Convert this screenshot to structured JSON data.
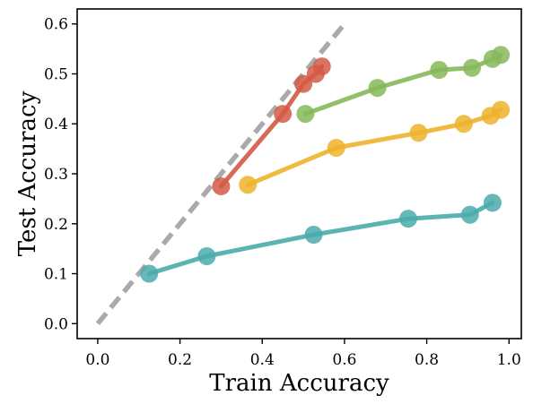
{
  "chart_data": {
    "type": "line",
    "xlabel": "Train Accuracy",
    "ylabel": "Test Accuracy",
    "xlim": [
      -0.05,
      1.03
    ],
    "ylim": [
      -0.03,
      0.63
    ],
    "xticks": [
      "0.0",
      "0.2",
      "0.4",
      "0.6",
      "0.8",
      "1.0"
    ],
    "xtick_values": [
      0.0,
      0.2,
      0.4,
      0.6,
      0.8,
      1.0
    ],
    "yticks": [
      "0.0",
      "0.1",
      "0.2",
      "0.3",
      "0.4",
      "0.5",
      "0.6"
    ],
    "ytick_values": [
      0.0,
      0.1,
      0.2,
      0.3,
      0.4,
      0.5,
      0.6
    ],
    "grid": false,
    "reference_line": {
      "x": [
        0.0,
        0.6
      ],
      "y": [
        0.0,
        0.6
      ],
      "color": "#aaaaaa",
      "style": "dashed"
    },
    "series": [
      {
        "color": "#d35a45",
        "x": [
          0.3,
          0.45,
          0.5,
          0.53,
          0.545
        ],
        "y": [
          0.275,
          0.42,
          0.48,
          0.5,
          0.515
        ]
      },
      {
        "color": "#86b95a",
        "x": [
          0.505,
          0.68,
          0.83,
          0.91,
          0.96,
          0.98
        ],
        "y": [
          0.42,
          0.472,
          0.508,
          0.512,
          0.53,
          0.538
        ]
      },
      {
        "color": "#edb32c",
        "x": [
          0.365,
          0.58,
          0.78,
          0.89,
          0.955,
          0.98
        ],
        "y": [
          0.278,
          0.352,
          0.382,
          0.4,
          0.416,
          0.428
        ]
      },
      {
        "color": "#4aacaa",
        "x": [
          0.125,
          0.265,
          0.525,
          0.755,
          0.905,
          0.96
        ],
        "y": [
          0.1,
          0.135,
          0.178,
          0.21,
          0.218,
          0.242
        ]
      }
    ]
  }
}
